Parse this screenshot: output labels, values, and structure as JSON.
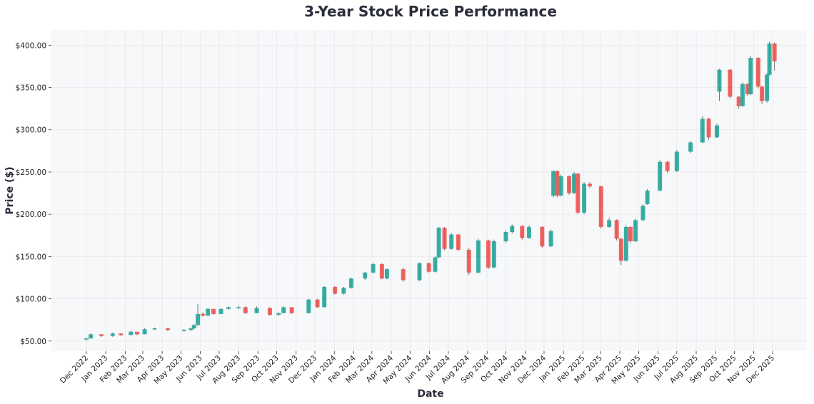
{
  "chart_data": {
    "type": "candlestick",
    "title": "3-Year Stock Price Performance",
    "xlabel": "Date",
    "ylabel": "Price ($)",
    "ylim": [
      38,
      418
    ],
    "grid": true,
    "colors": {
      "up": "#26a69a",
      "down": "#ef5350",
      "wick": "#707070",
      "plot_bg": "#f7f8fa"
    },
    "y_ticks": [
      "$50.00",
      "$100.00",
      "$150.00",
      "$200.00",
      "$250.00",
      "$300.00",
      "$350.00",
      "$400.00"
    ],
    "y_tick_values": [
      50,
      100,
      150,
      200,
      250,
      300,
      350,
      400
    ],
    "x_ticks": [
      "Dec 2022",
      "Jan 2023",
      "Feb 2023",
      "Mar 2023",
      "Apr 2023",
      "May 2023",
      "Jun 2023",
      "Jul 2023",
      "Aug 2023",
      "Sep 2023",
      "Oct 2023",
      "Nov 2023",
      "Dec 2023",
      "Jan 2024",
      "Feb 2024",
      "Mar 2024",
      "Apr 2024",
      "May 2024",
      "Jun 2024",
      "Jul 2024",
      "Aug 2024",
      "Sep 2024",
      "Oct 2024",
      "Nov 2024",
      "Dec 2024",
      "Jan 2025",
      "Feb 2025",
      "Mar 2025",
      "Apr 2025",
      "May 2025",
      "Jun 2025",
      "Jul 2025",
      "Aug 2025",
      "Sep 2025",
      "Oct 2025",
      "Nov 2025",
      "Dec 2025"
    ],
    "x_tick_dates": [
      "2022-12-01",
      "2023-01-01",
      "2023-02-01",
      "2023-03-01",
      "2023-04-01",
      "2023-05-01",
      "2023-06-01",
      "2023-07-01",
      "2023-08-01",
      "2023-09-01",
      "2023-10-01",
      "2023-11-01",
      "2023-12-01",
      "2024-01-01",
      "2024-02-01",
      "2024-03-01",
      "2024-04-01",
      "2024-05-01",
      "2024-06-01",
      "2024-07-01",
      "2024-08-01",
      "2024-09-01",
      "2024-10-01",
      "2024-11-01",
      "2024-12-01",
      "2025-01-01",
      "2025-02-01",
      "2025-03-01",
      "2025-04-01",
      "2025-05-01",
      "2025-06-01",
      "2025-07-01",
      "2025-08-01",
      "2025-09-01",
      "2025-10-01",
      "2025-11-01",
      "2025-12-01"
    ],
    "columns": [
      "date",
      "open",
      "high",
      "low",
      "close"
    ],
    "ohlc": [
      [
        "2022-12-01",
        52,
        54,
        51,
        53
      ],
      [
        "2022-12-08",
        53,
        59,
        53,
        58
      ],
      [
        "2022-12-25",
        58,
        58,
        55,
        56
      ],
      [
        "2023-01-12",
        56,
        60,
        55,
        59
      ],
      [
        "2023-01-25",
        59,
        59,
        56,
        57
      ],
      [
        "2023-02-10",
        57,
        62,
        57,
        61
      ],
      [
        "2023-02-20",
        61,
        61,
        57,
        58
      ],
      [
        "2023-03-04",
        58,
        65,
        58,
        64
      ],
      [
        "2023-03-20",
        64,
        66,
        63,
        65
      ],
      [
        "2023-04-10",
        65,
        66,
        62,
        63
      ],
      [
        "2023-05-06",
        63,
        64,
        61,
        63
      ],
      [
        "2023-05-17",
        63,
        66,
        62,
        65
      ],
      [
        "2023-05-22",
        65,
        70,
        64,
        69
      ],
      [
        "2023-05-28",
        69,
        94,
        68,
        82
      ],
      [
        "2023-06-05",
        82,
        84,
        79,
        80
      ],
      [
        "2023-06-13",
        80,
        89,
        80,
        88
      ],
      [
        "2023-06-22",
        88,
        88,
        81,
        82
      ],
      [
        "2023-07-04",
        82,
        89,
        82,
        88
      ],
      [
        "2023-07-16",
        88,
        91,
        87,
        90
      ],
      [
        "2023-08-01",
        90,
        92,
        88,
        90
      ],
      [
        "2023-08-12",
        90,
        91,
        82,
        83
      ],
      [
        "2023-08-30",
        83,
        91,
        83,
        89
      ],
      [
        "2023-09-20",
        89,
        90,
        80,
        81
      ],
      [
        "2023-10-04",
        81,
        84,
        80,
        83
      ],
      [
        "2023-10-12",
        83,
        91,
        83,
        90
      ],
      [
        "2023-10-25",
        90,
        90,
        82,
        83
      ],
      [
        "2023-11-21",
        83,
        100,
        83,
        99
      ],
      [
        "2023-12-05",
        99,
        100,
        89,
        90
      ],
      [
        "2023-12-16",
        90,
        115,
        90,
        114
      ],
      [
        "2024-01-02",
        114,
        115,
        105,
        106
      ],
      [
        "2024-01-16",
        106,
        114,
        105,
        113
      ],
      [
        "2024-01-28",
        113,
        125,
        112,
        124
      ],
      [
        "2024-02-19",
        124,
        132,
        122,
        131
      ],
      [
        "2024-03-03",
        131,
        143,
        130,
        141
      ],
      [
        "2024-03-17",
        141,
        142,
        123,
        124
      ],
      [
        "2024-03-25",
        124,
        136,
        123,
        135
      ],
      [
        "2024-04-20",
        135,
        137,
        120,
        122
      ],
      [
        "2024-05-16",
        122,
        143,
        121,
        142
      ],
      [
        "2024-05-31",
        142,
        143,
        131,
        132
      ],
      [
        "2024-06-10",
        132,
        150,
        131,
        149
      ],
      [
        "2024-06-16",
        149,
        185,
        148,
        184
      ],
      [
        "2024-06-25",
        184,
        185,
        157,
        159
      ],
      [
        "2024-07-06",
        159,
        178,
        158,
        176
      ],
      [
        "2024-07-17",
        176,
        177,
        156,
        158
      ],
      [
        "2024-08-03",
        158,
        160,
        128,
        131
      ],
      [
        "2024-08-18",
        131,
        171,
        130,
        169
      ],
      [
        "2024-09-03",
        169,
        170,
        135,
        137
      ],
      [
        "2024-09-12",
        137,
        170,
        136,
        168
      ],
      [
        "2024-10-01",
        168,
        181,
        166,
        179
      ],
      [
        "2024-10-11",
        179,
        188,
        177,
        186
      ],
      [
        "2024-10-27",
        186,
        187,
        170,
        172
      ],
      [
        "2024-11-07",
        172,
        187,
        171,
        185
      ],
      [
        "2024-11-28",
        185,
        186,
        160,
        162
      ],
      [
        "2024-12-12",
        162,
        182,
        161,
        180
      ],
      [
        "2024-12-16",
        222,
        252,
        220,
        251
      ],
      [
        "2024-12-22",
        251,
        252,
        220,
        222
      ],
      [
        "2024-12-28",
        222,
        247,
        221,
        245
      ],
      [
        "2025-01-10",
        245,
        246,
        223,
        225
      ],
      [
        "2025-01-18",
        225,
        250,
        224,
        248
      ],
      [
        "2025-01-24",
        248,
        249,
        200,
        202
      ],
      [
        "2025-02-03",
        202,
        238,
        200,
        236
      ],
      [
        "2025-02-12",
        236,
        238,
        231,
        233
      ],
      [
        "2025-03-02",
        233,
        234,
        183,
        185
      ],
      [
        "2025-03-15",
        185,
        196,
        184,
        193
      ],
      [
        "2025-03-27",
        193,
        194,
        169,
        171
      ],
      [
        "2025-04-03",
        171,
        172,
        140,
        145
      ],
      [
        "2025-04-11",
        145,
        187,
        144,
        185
      ],
      [
        "2025-04-18",
        185,
        186,
        166,
        168
      ],
      [
        "2025-04-26",
        168,
        195,
        167,
        193
      ],
      [
        "2025-05-08",
        193,
        212,
        192,
        210
      ],
      [
        "2025-05-15",
        212,
        230,
        211,
        228
      ],
      [
        "2025-06-04",
        228,
        264,
        227,
        262
      ],
      [
        "2025-06-16",
        262,
        263,
        249,
        251
      ],
      [
        "2025-07-01",
        251,
        276,
        250,
        274
      ],
      [
        "2025-07-23",
        274,
        287,
        272,
        285
      ],
      [
        "2025-08-11",
        285,
        316,
        284,
        313
      ],
      [
        "2025-08-21",
        313,
        314,
        288,
        291
      ],
      [
        "2025-09-03",
        291,
        307,
        290,
        305
      ],
      [
        "2025-09-07",
        345,
        372,
        334,
        371
      ],
      [
        "2025-09-24",
        371,
        372,
        337,
        339
      ],
      [
        "2025-10-08",
        339,
        340,
        325,
        328
      ],
      [
        "2025-10-14",
        328,
        356,
        327,
        354
      ],
      [
        "2025-10-22",
        354,
        355,
        340,
        342
      ],
      [
        "2025-10-27",
        342,
        387,
        341,
        385
      ],
      [
        "2025-11-08",
        385,
        386,
        349,
        351
      ],
      [
        "2025-11-14",
        351,
        352,
        330,
        334
      ],
      [
        "2025-11-22",
        334,
        367,
        332,
        365
      ],
      [
        "2025-11-26",
        365,
        404,
        364,
        402
      ],
      [
        "2025-12-04",
        402,
        403,
        370,
        381
      ]
    ]
  }
}
